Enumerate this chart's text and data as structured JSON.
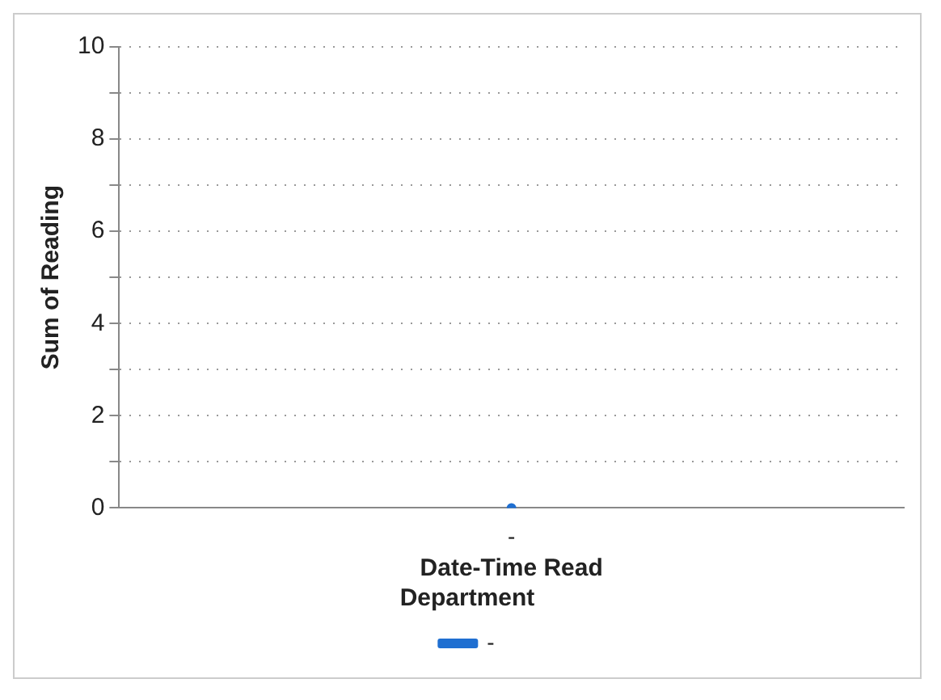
{
  "chart_data": {
    "type": "line",
    "xlabel": "Date-Time Read",
    "ylabel": "Sum of Reading",
    "legend_title": "Department",
    "categories": [
      "-"
    ],
    "series": [
      {
        "name": "-",
        "color": "#1f6fd1",
        "values": [
          0
        ]
      }
    ],
    "ylim": [
      0,
      10
    ],
    "yticks": [
      0,
      {
        "value": 1,
        "label": null
      },
      2,
      {
        "value": 3,
        "label": null
      },
      4,
      {
        "value": 5,
        "label": null
      },
      6,
      {
        "value": 7,
        "label": null
      },
      8,
      {
        "value": 9,
        "label": null
      },
      10
    ],
    "grid": "y",
    "legend": "bottom",
    "marker": "circle",
    "line_style": "solid"
  }
}
